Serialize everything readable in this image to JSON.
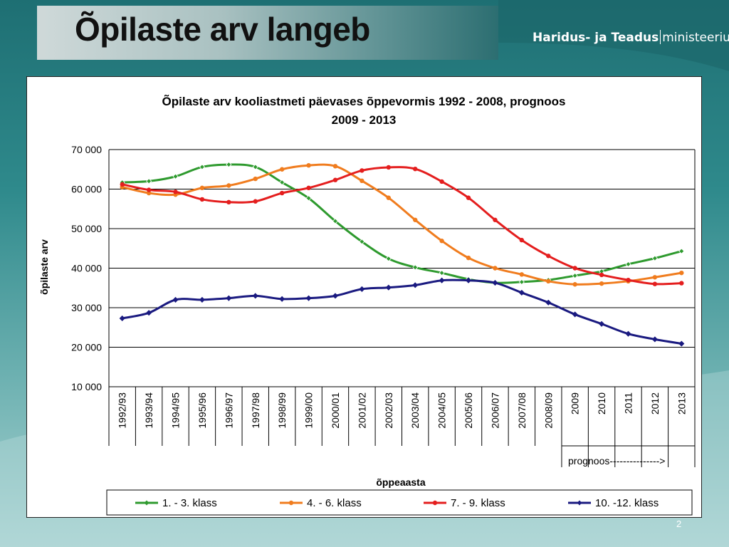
{
  "slide": {
    "title": "Õpilaste arv langeb",
    "ministry_bold": "Haridus- ja Teadus",
    "ministry_light": "ministeerium",
    "page_number": "2"
  },
  "chart_data": {
    "type": "line",
    "title_lines": [
      "Õpilaste arv kooliastmeti päevases õppevormis 1992 - 2008, prognoos",
      "2009 - 2013"
    ],
    "xlabel": "õppeaasta",
    "ylabel": "õpilaste arv",
    "ylim": [
      10000,
      70000
    ],
    "yticks": [
      70000,
      60000,
      50000,
      40000,
      30000,
      20000,
      10000
    ],
    "ytick_labels": [
      "70 000",
      "60 000",
      "50 000",
      "40 000",
      "30 000",
      "20 000",
      "10 000"
    ],
    "grid": true,
    "categories": [
      "1992/93",
      "1993/94",
      "1994/95",
      "1995/96",
      "1996/97",
      "1997/98",
      "1998/99",
      "1999/00",
      "2000/01",
      "2001/02",
      "2002/03",
      "2003/04",
      "2004/05",
      "2005/06",
      "2006/07",
      "2007/08",
      "2008/09",
      "2009",
      "2010",
      "2011",
      "2012",
      "2013"
    ],
    "forecast_label": "prognoos--------------->",
    "forecast_start_index": 17,
    "legend_position": "bottom",
    "series": [
      {
        "name": "1. - 3. klass",
        "color": "#2e9a2e",
        "marker": "diamond",
        "values": [
          61700,
          62000,
          63200,
          65600,
          66200,
          65600,
          61700,
          57700,
          51900,
          46700,
          42400,
          40200,
          38800,
          37200,
          36300,
          36500,
          37000,
          38100,
          39200,
          41000,
          42500,
          44300
        ]
      },
      {
        "name": "4. - 6. klass",
        "color": "#f07c1e",
        "marker": "circle",
        "values": [
          60500,
          59000,
          58600,
          60300,
          60900,
          62600,
          65000,
          66000,
          65800,
          62100,
          57800,
          52200,
          46900,
          42600,
          40000,
          38400,
          36700,
          35900,
          36100,
          36700,
          37700,
          38800
        ]
      },
      {
        "name": "7. - 9. klass",
        "color": "#e41e1e",
        "marker": "circle",
        "values": [
          61200,
          59800,
          59300,
          57400,
          56700,
          56900,
          59000,
          60300,
          62300,
          64700,
          65500,
          65100,
          61900,
          57800,
          52200,
          47100,
          43100,
          40000,
          38300,
          37000,
          36000,
          36200
        ]
      },
      {
        "name": "10. -12. klass",
        "color": "#1a1a80",
        "marker": "diamond",
        "values": [
          27300,
          28700,
          32000,
          32000,
          32400,
          33000,
          32200,
          32400,
          33000,
          34700,
          35100,
          35700,
          36900,
          36900,
          36300,
          33800,
          31300,
          28300,
          25900,
          23400,
          22000,
          20900
        ]
      }
    ]
  }
}
